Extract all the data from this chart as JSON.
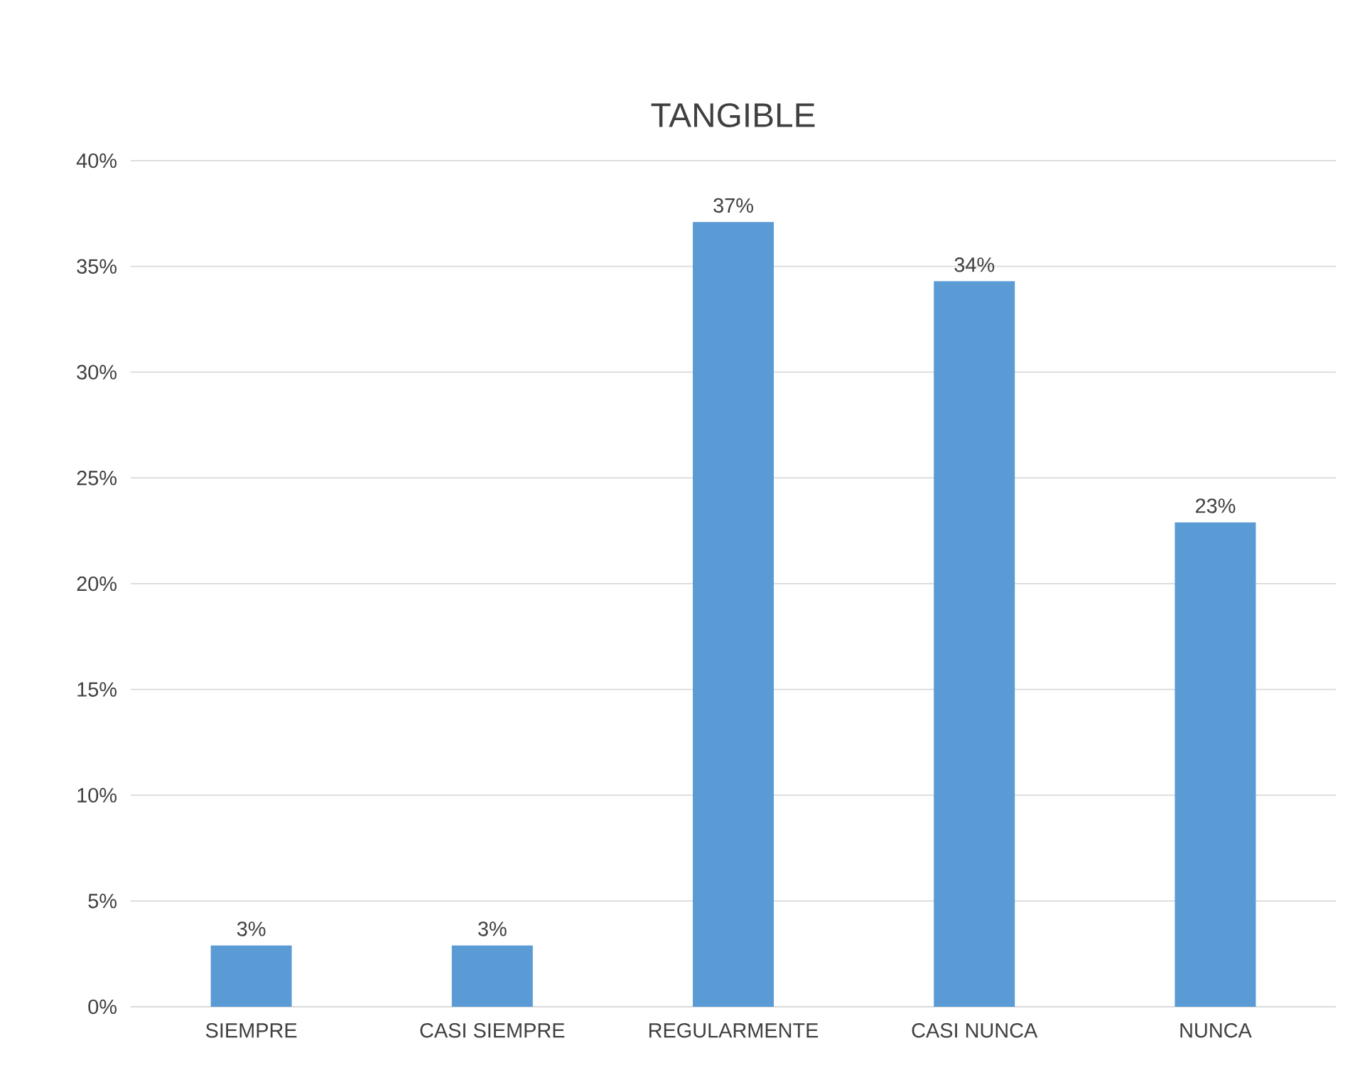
{
  "chart_data": {
    "type": "bar",
    "title": "TANGIBLE",
    "categories": [
      "SIEMPRE",
      "CASI SIEMPRE",
      "REGULARMENTE",
      "CASI NUNCA",
      "NUNCA"
    ],
    "values": [
      2.9,
      2.9,
      37.1,
      34.3,
      22.9
    ],
    "value_labels": [
      "3%",
      "3%",
      "37%",
      "34%",
      "23%"
    ],
    "color": "#5b9bd5",
    "ylim": [
      0,
      40
    ],
    "yticks": [
      {
        "value": 0,
        "label": "0%"
      },
      {
        "value": 5,
        "label": "5%"
      },
      {
        "value": 10,
        "label": "10%"
      },
      {
        "value": 15,
        "label": "15%"
      },
      {
        "value": 20,
        "label": "20%"
      },
      {
        "value": 25,
        "label": "25%"
      },
      {
        "value": 30,
        "label": "30%"
      },
      {
        "value": 35,
        "label": "35%"
      },
      {
        "value": 40,
        "label": "40%"
      }
    ],
    "grid": "y"
  }
}
